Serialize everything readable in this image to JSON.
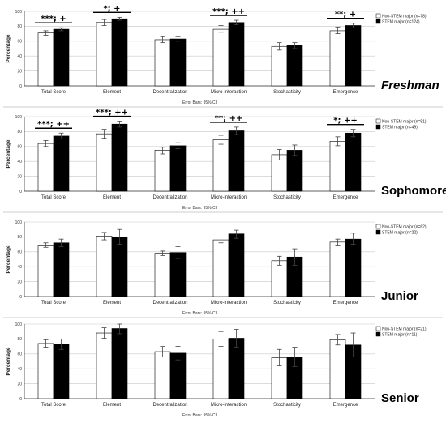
{
  "chart_data": [
    {
      "type": "bar",
      "panel_label": "Freshman",
      "ylabel": "Percentage",
      "footnote": "Error Bars: 95% CI",
      "ylim": [
        0,
        100
      ],
      "yticks": [
        "0",
        "20",
        "40",
        "60",
        "80",
        "100"
      ],
      "categories": [
        "Total Score",
        "Element",
        "Decentralization",
        "Micro-interaction",
        "Stochasticity",
        "Emergence"
      ],
      "series": [
        {
          "name": "Non-STEM major (n=78)",
          "color": "#ffffff",
          "values": [
            71,
            85,
            62,
            76,
            53,
            74
          ],
          "ci_low": [
            68,
            81,
            58,
            72,
            48,
            70
          ],
          "ci_high": [
            74,
            89,
            66,
            81,
            58,
            79
          ]
        },
        {
          "name": "STEM major (n=124)",
          "color": "#000000",
          "values": [
            76,
            90,
            63,
            85,
            54,
            81
          ],
          "ci_low": [
            74,
            88,
            60,
            82,
            50,
            78
          ],
          "ci_high": [
            78,
            92,
            66,
            88,
            58,
            84
          ]
        }
      ],
      "significance": [
        {
          "category": "Total Score",
          "label": "***; +"
        },
        {
          "category": "Element",
          "label": "*; +"
        },
        {
          "category": "Micro-interaction",
          "label": "***; ++"
        },
        {
          "category": "Emergence",
          "label": "**; +"
        }
      ]
    },
    {
      "type": "bar",
      "panel_label": "Sophomore",
      "ylabel": "Percentage",
      "footnote": "Error Bars: 95% CI",
      "ylim": [
        0,
        100
      ],
      "yticks": [
        "0",
        "20",
        "40",
        "60",
        "80",
        "100"
      ],
      "categories": [
        "Total Score",
        "Element",
        "Decentralization",
        "Micro-interaction",
        "Stochasticity",
        "Emergence"
      ],
      "series": [
        {
          "name": "Non-STEM major (n=51)",
          "color": "#ffffff",
          "values": [
            64,
            77,
            55,
            69,
            49,
            67
          ],
          "ci_low": [
            60,
            71,
            50,
            63,
            42,
            61
          ],
          "ci_high": [
            68,
            83,
            59,
            75,
            56,
            73
          ]
        },
        {
          "name": "STEM major (n=49)",
          "color": "#000000",
          "values": [
            74,
            90,
            61,
            81,
            55,
            78
          ],
          "ci_low": [
            70,
            86,
            57,
            76,
            48,
            73
          ],
          "ci_high": [
            78,
            94,
            65,
            86,
            62,
            83
          ]
        }
      ],
      "significance": [
        {
          "category": "Total Score",
          "label": "***; ++"
        },
        {
          "category": "Element",
          "label": "***; ++"
        },
        {
          "category": "Micro-interaction",
          "label": "**; ++"
        },
        {
          "category": "Emergence",
          "label": "*; ++"
        }
      ]
    },
    {
      "type": "bar",
      "panel_label": "Junior",
      "ylabel": "Percentage",
      "footnote": "Error Bars: 95% CI",
      "ylim": [
        0,
        100
      ],
      "yticks": [
        "0",
        "20",
        "40",
        "60",
        "80",
        "100"
      ],
      "categories": [
        "Total Score",
        "Element",
        "Decentralization",
        "Micro-interaction",
        "Stochasticity",
        "Emergence"
      ],
      "series": [
        {
          "name": "Non-STEM major (n=62)",
          "color": "#ffffff",
          "values": [
            69,
            81,
            58,
            76,
            48,
            73
          ],
          "ci_low": [
            66,
            76,
            55,
            72,
            42,
            69
          ],
          "ci_high": [
            72,
            86,
            61,
            80,
            54,
            77
          ]
        },
        {
          "name": "STEM major (n=22)",
          "color": "#000000",
          "values": [
            72,
            80,
            59,
            84,
            53,
            77
          ],
          "ci_low": [
            67,
            70,
            51,
            78,
            42,
            70
          ],
          "ci_high": [
            77,
            90,
            67,
            89,
            64,
            85
          ]
        }
      ],
      "significance": []
    },
    {
      "type": "bar",
      "panel_label": "Senior",
      "ylabel": "Percentage",
      "footnote": "Error Bars: 95% CI",
      "ylim": [
        0,
        100
      ],
      "yticks": [
        "0",
        "20",
        "40",
        "60",
        "80",
        "100"
      ],
      "categories": [
        "Total Score",
        "Element",
        "Decentralization",
        "Micro-interaction",
        "Stochasticity",
        "Emergence"
      ],
      "series": [
        {
          "name": "Non-STEM major (n=21)",
          "color": "#ffffff",
          "values": [
            74,
            88,
            63,
            80,
            55,
            79
          ],
          "ci_low": [
            69,
            81,
            56,
            70,
            44,
            72
          ],
          "ci_high": [
            79,
            95,
            70,
            90,
            66,
            86
          ]
        },
        {
          "name": "STEM major (n=11)",
          "color": "#000000",
          "values": [
            73,
            94,
            61,
            81,
            56,
            72
          ],
          "ci_low": [
            66,
            87,
            52,
            69,
            43,
            56
          ],
          "ci_high": [
            80,
            100,
            70,
            93,
            69,
            88
          ]
        }
      ],
      "significance": []
    }
  ]
}
